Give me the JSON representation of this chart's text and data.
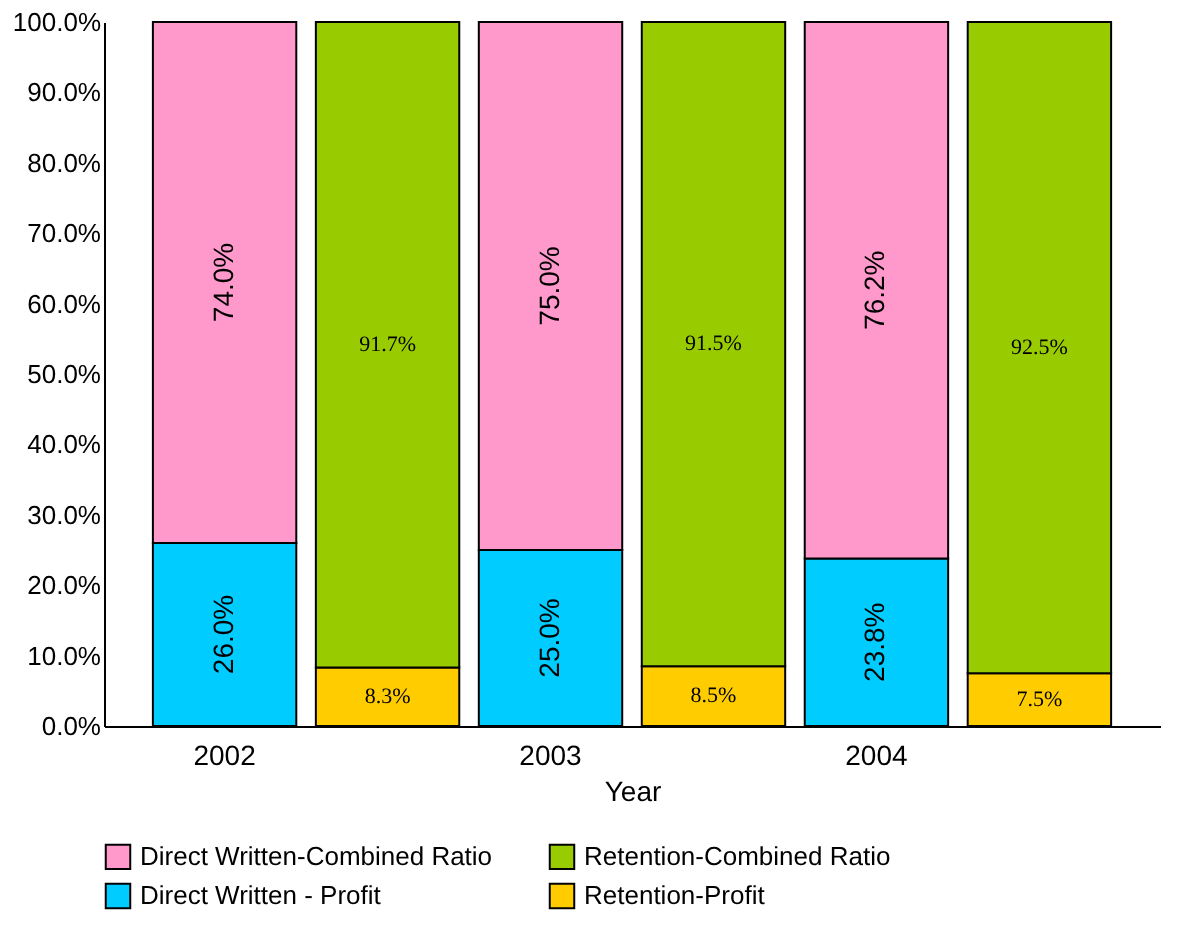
{
  "chart_data": {
    "type": "bar",
    "stacked": true,
    "xlabel": "Year",
    "categories": [
      "2002",
      null,
      "2003",
      null,
      "2004",
      null
    ],
    "ylim": [
      0,
      100
    ],
    "yticks": [
      {
        "value": 0,
        "label": "0.0%"
      },
      {
        "value": 10,
        "label": "10.0%"
      },
      {
        "value": 20,
        "label": "20.0%"
      },
      {
        "value": 30,
        "label": "30.0%"
      },
      {
        "value": 40,
        "label": "40.0%"
      },
      {
        "value": 50,
        "label": "50.0%"
      },
      {
        "value": 60,
        "label": "60.0%"
      },
      {
        "value": 70,
        "label": "70.0%"
      },
      {
        "value": 80,
        "label": "80.0%"
      },
      {
        "value": 90,
        "label": "90.0%"
      },
      {
        "value": 100,
        "label": "100.0%"
      }
    ],
    "grid": false,
    "legend": "bottom",
    "series": [
      {
        "name": "Direct Written - Profit",
        "color": "#00ccff",
        "values": [
          26.0,
          null,
          25.0,
          null,
          23.8,
          null
        ],
        "value_labels": [
          "26.0%",
          null,
          "25.0%",
          null,
          "23.8%",
          null
        ]
      },
      {
        "name": "Direct Written-Combined Ratio",
        "color": "#ff99cc",
        "values": [
          74.0,
          null,
          75.0,
          null,
          76.2,
          null
        ],
        "value_labels": [
          "74.0%",
          null,
          "75.0%",
          null,
          "76.2%",
          null
        ]
      },
      {
        "name": "Retention-Profit",
        "color": "#ffcc00",
        "values": [
          null,
          8.3,
          null,
          8.5,
          null,
          7.5
        ],
        "value_labels": [
          null,
          "8.3%",
          null,
          "8.5%",
          null,
          "7.5%"
        ]
      },
      {
        "name": "Retention-Combined Ratio",
        "color": "#99cc00",
        "values": [
          null,
          91.7,
          null,
          91.5,
          null,
          92.5
        ],
        "value_labels": [
          null,
          "91.7%",
          null,
          "91.5%",
          null,
          "92.5%"
        ]
      }
    ]
  }
}
